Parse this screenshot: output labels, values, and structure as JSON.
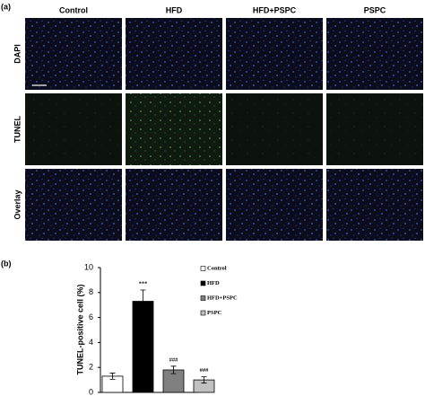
{
  "figure": {
    "panel_a": {
      "label": "(a)",
      "columns": [
        "Control",
        "HFD",
        "HFD+PSPC",
        "PSPC"
      ],
      "rows": [
        "DAPI",
        "TUNEL",
        "Overlay"
      ]
    },
    "panel_b": {
      "label": "(b)"
    }
  },
  "chart_data": {
    "type": "bar",
    "y_label": "TUNEL-positive cell (%)",
    "categories": [
      "Control",
      "HFD",
      "HFD+PSPC",
      "PSPC"
    ],
    "values": [
      1.3,
      7.3,
      1.8,
      1.0
    ],
    "errors": [
      0.25,
      0.9,
      0.3,
      0.25
    ],
    "colors": [
      "#ffffff",
      "#000000",
      "#808080",
      "#c0c0c0"
    ],
    "annotations": [
      null,
      "***",
      "###",
      "###"
    ],
    "ylim": [
      0,
      10
    ],
    "yticks": [
      0,
      2,
      4,
      6,
      8,
      10
    ],
    "legend": "right"
  }
}
